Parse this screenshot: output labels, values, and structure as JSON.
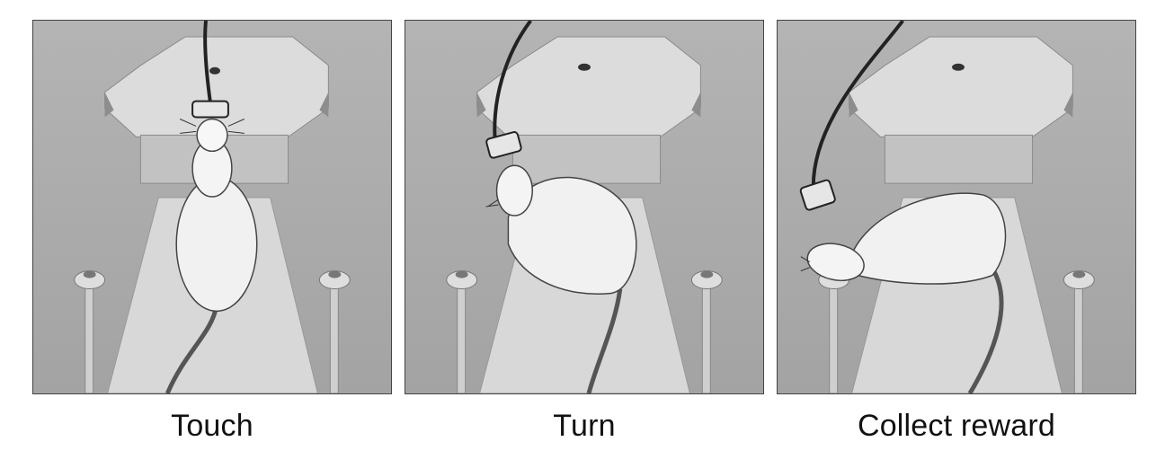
{
  "panels": [
    {
      "caption": "Touch"
    },
    {
      "caption": "Turn"
    },
    {
      "caption": "Collect reward"
    }
  ]
}
